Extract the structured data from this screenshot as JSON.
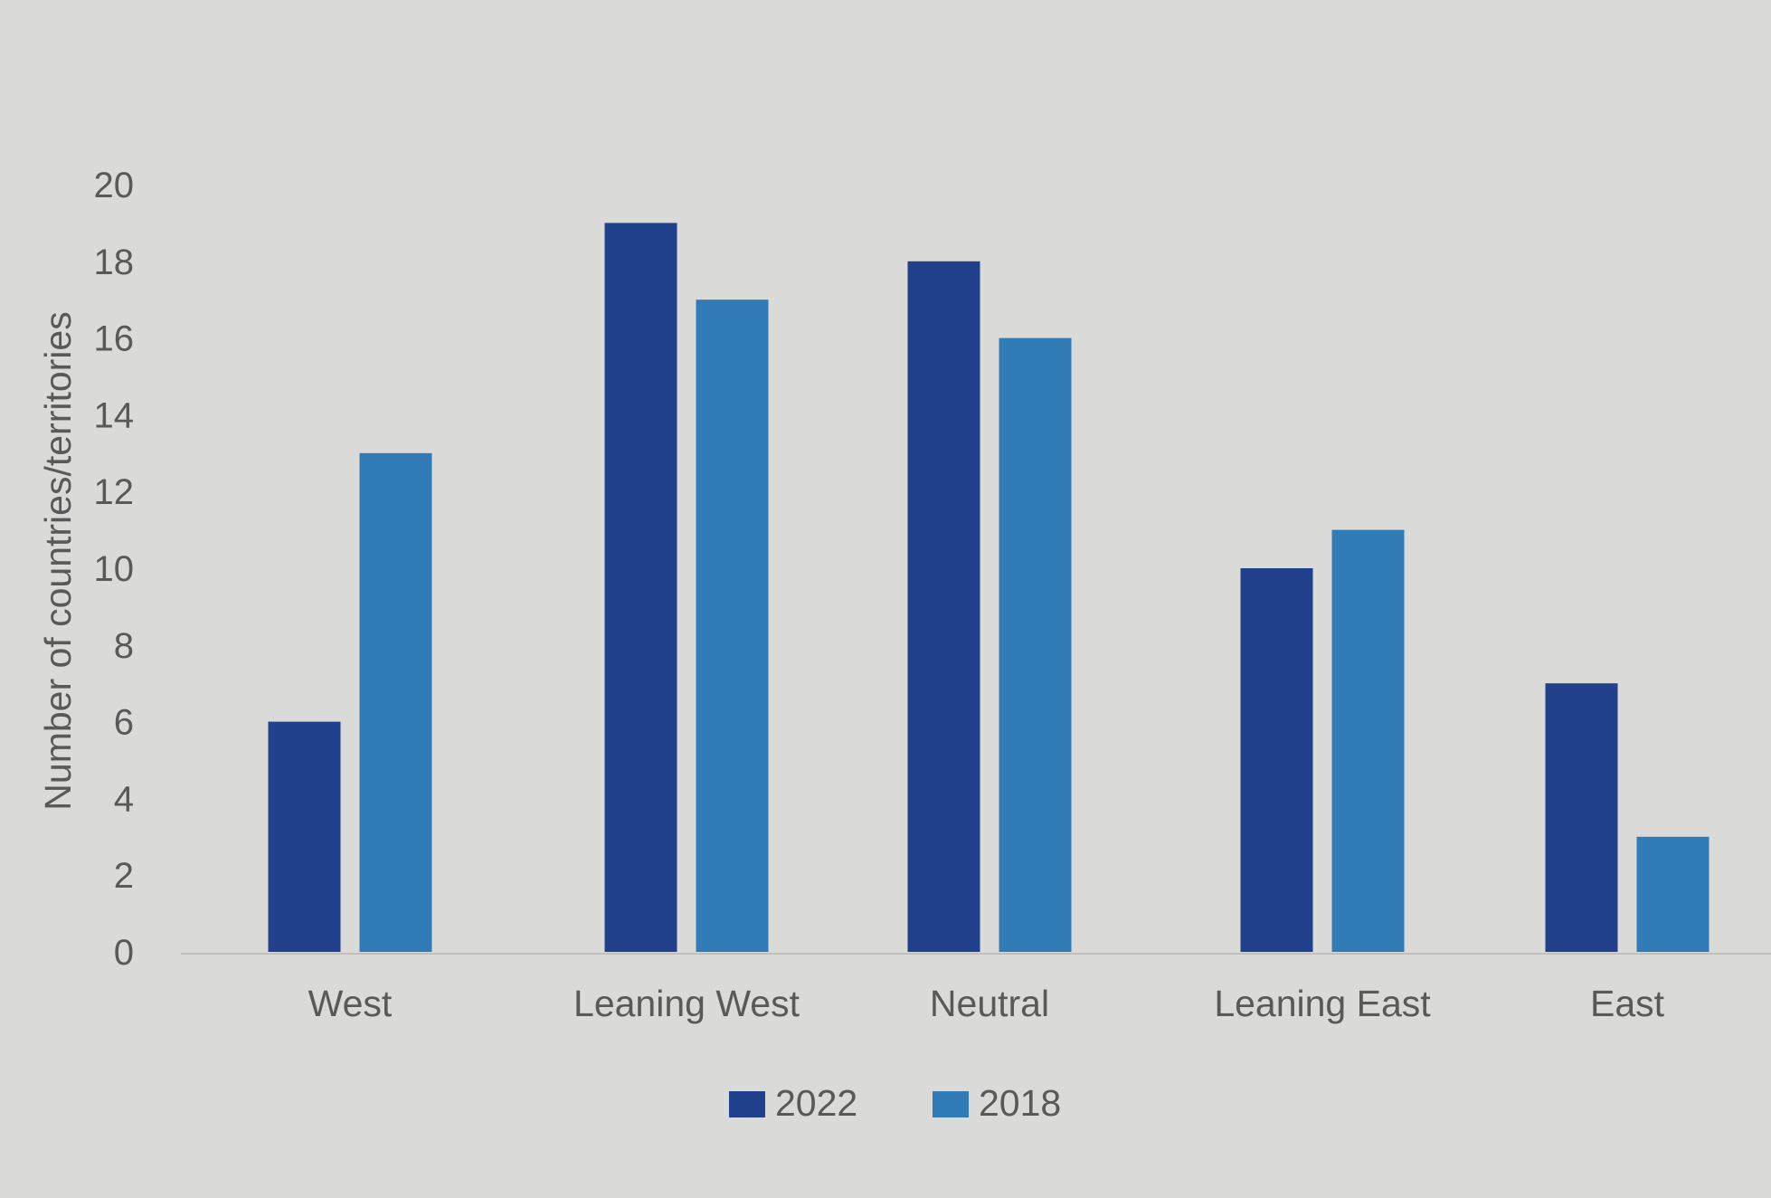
{
  "chart_data": {
    "type": "bar",
    "title": "",
    "xlabel": "",
    "ylabel": "Number of countries/territories",
    "categories": [
      "West",
      "Leaning West",
      "Neutral",
      "Leaning East",
      "East"
    ],
    "series": [
      {
        "name": "2022",
        "values": [
          6,
          19,
          18,
          10,
          7
        ],
        "color": "#21418c"
      },
      {
        "name": "2018",
        "values": [
          13,
          17,
          16,
          11,
          3
        ],
        "color": "#317bb7"
      }
    ],
    "ylim": [
      0,
      20
    ],
    "yticks": [
      0,
      2,
      4,
      6,
      8,
      10,
      12,
      14,
      16,
      18,
      20
    ],
    "grid": false,
    "legend_position": "bottom-center",
    "axis_color": "#bfbfbf",
    "text_color": "#595959",
    "background": "#dadad9"
  }
}
